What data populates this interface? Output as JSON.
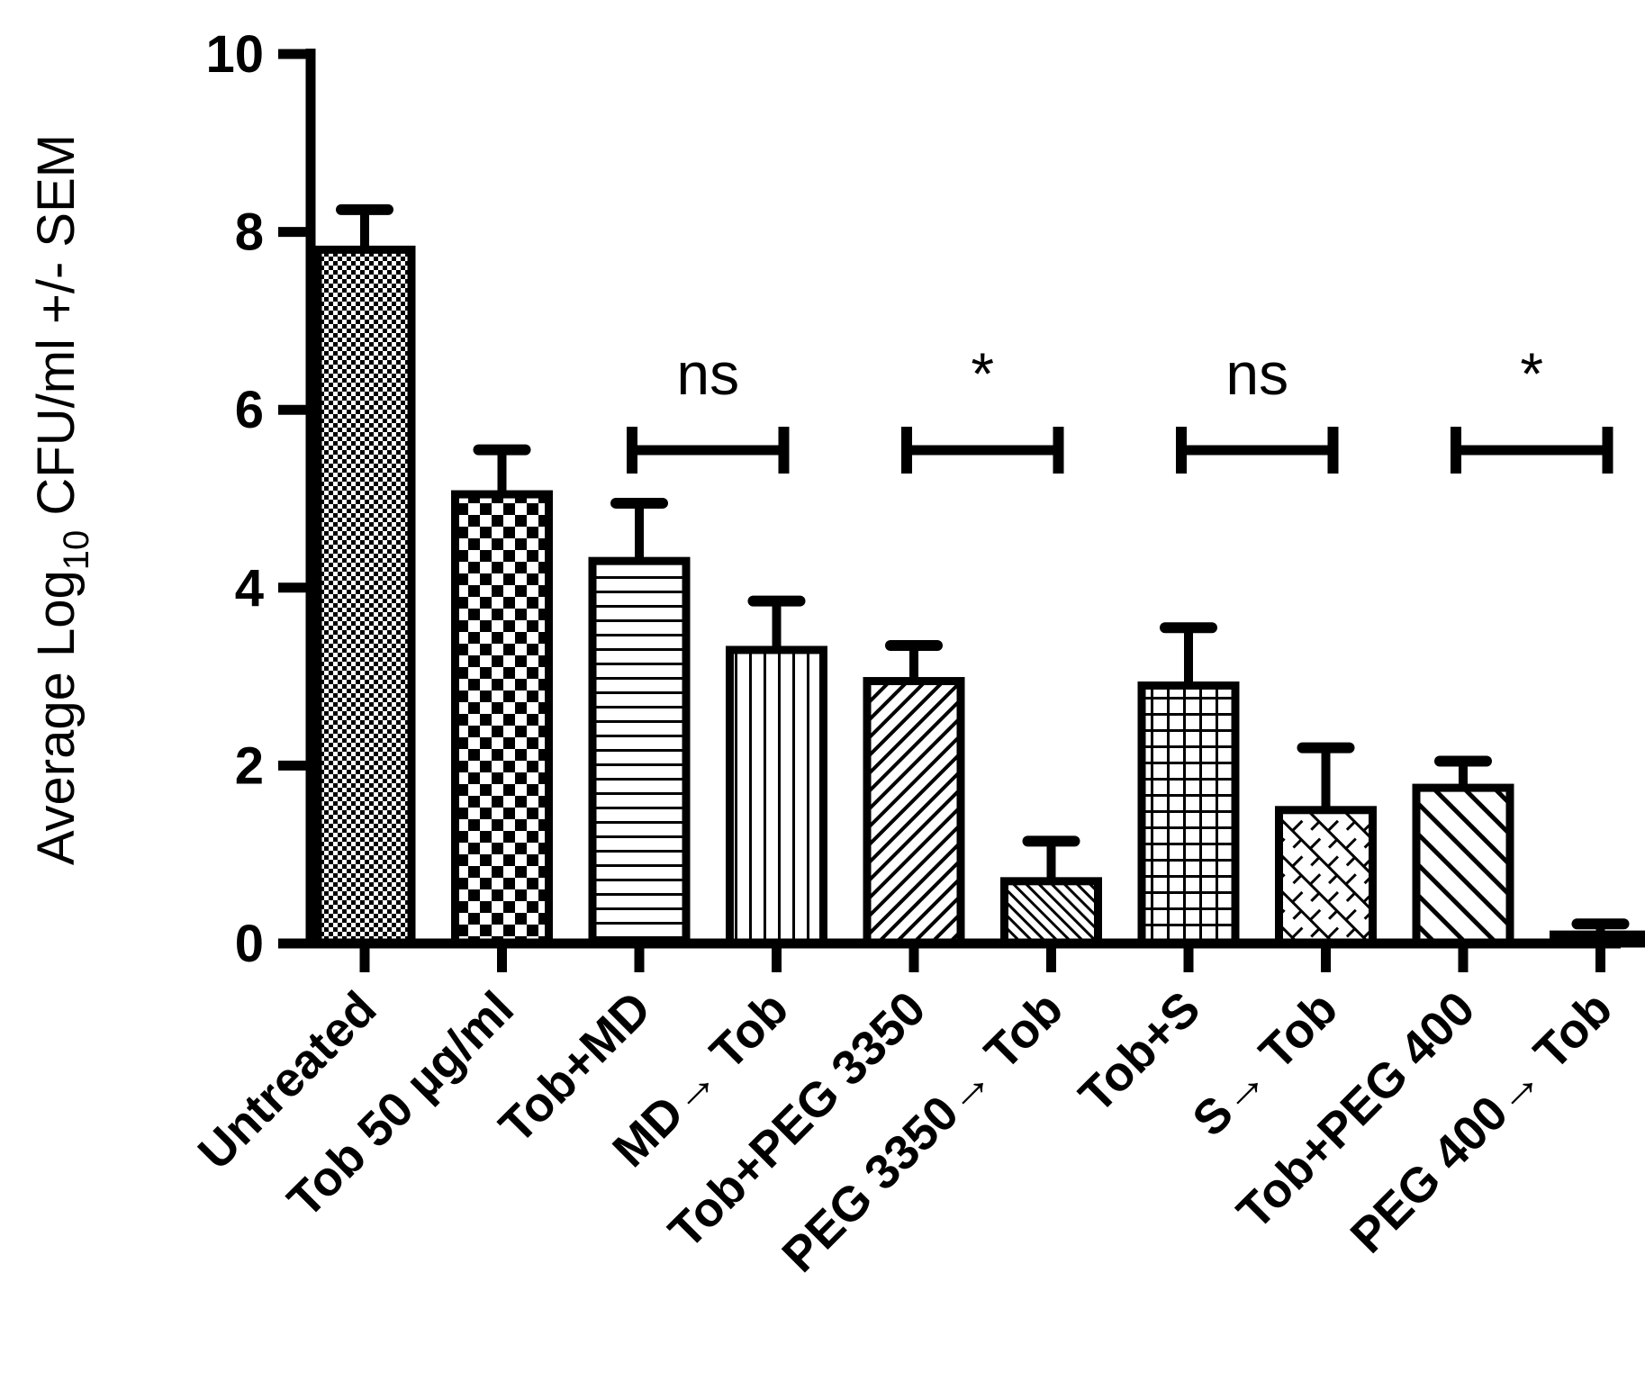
{
  "chart_data": {
    "type": "bar",
    "title": "",
    "xlabel": "",
    "ylabel": {
      "prefix": "Average Log",
      "subscript": "10",
      "suffix": " CFU/ml  +/- SEM"
    },
    "ylim": [
      0,
      10
    ],
    "yticks": [
      "0",
      "2",
      "4",
      "6",
      "8",
      "10"
    ],
    "grid": false,
    "categories": [
      "Untreated",
      "Tob 50 µg/ml",
      "Tob+MD",
      "MD→ Tob",
      "Tob+PEG 3350",
      "PEG 3350→ Tob",
      "Tob+S",
      "S→ Tob",
      "Tob+PEG 400",
      "PEG 400→ Tob"
    ],
    "series": [
      {
        "name": "Average Log10 CFU/ml",
        "values": [
          7.8,
          5.05,
          4.3,
          3.3,
          2.95,
          0.7,
          2.9,
          1.5,
          1.75,
          0.1
        ],
        "sem": [
          0.45,
          0.5,
          0.65,
          0.55,
          0.4,
          0.45,
          0.65,
          0.7,
          0.3,
          0.12
        ]
      }
    ],
    "patterns": [
      "fine-check",
      "checker",
      "h-lines",
      "v-lines",
      "diag-fine",
      "diag-cross",
      "grid",
      "brick",
      "diag-wide",
      "solid"
    ],
    "annotations": [
      {
        "from": 2,
        "to": 3,
        "label": "ns"
      },
      {
        "from": 4,
        "to": 5,
        "label": "*"
      },
      {
        "from": 6,
        "to": 7,
        "label": "ns"
      },
      {
        "from": 8,
        "to": 9,
        "label": "*"
      }
    ],
    "colors": {
      "ink": "#000000",
      "background": "#ffffff"
    }
  }
}
